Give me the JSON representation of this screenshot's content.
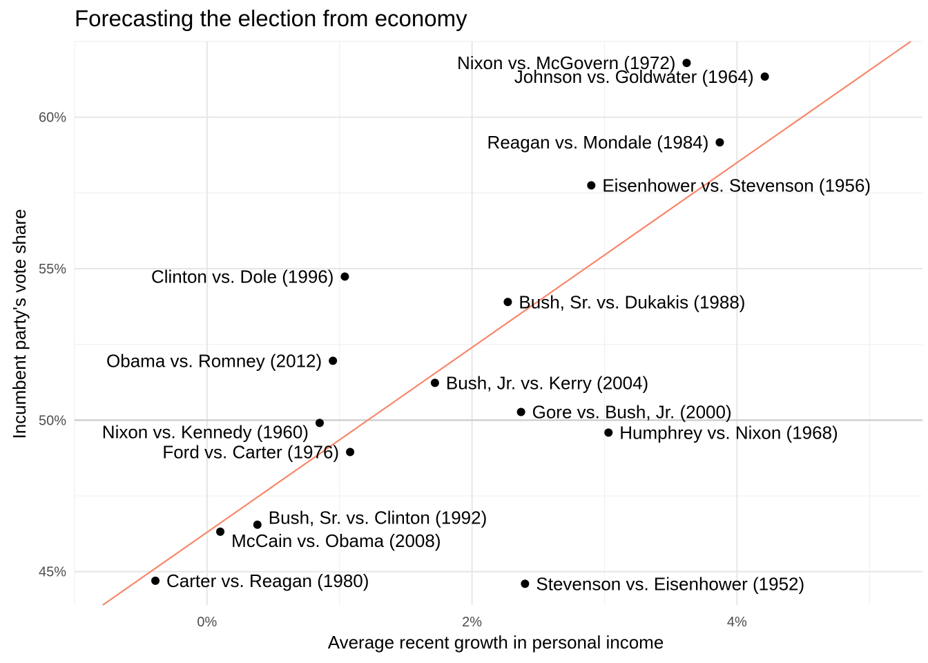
{
  "chart_data": {
    "type": "scatter",
    "title": "Forecasting the election from economy",
    "xlabel": "Average recent growth in personal income",
    "ylabel": "Incumbent party's vote share",
    "xlim": [
      -1.0,
      5.4
    ],
    "ylim": [
      43.9,
      62.5
    ],
    "x_ticks": [
      {
        "value": 0,
        "label": "0%"
      },
      {
        "value": 2,
        "label": "2%"
      },
      {
        "value": 4,
        "label": "4%"
      }
    ],
    "x_minor": [
      -1,
      1,
      3,
      5
    ],
    "y_ticks": [
      {
        "value": 45,
        "label": "45%"
      },
      {
        "value": 50,
        "label": "50%"
      },
      {
        "value": 55,
        "label": "55%"
      },
      {
        "value": 60,
        "label": "60%"
      }
    ],
    "y_minor": [
      47.5,
      52.5,
      57.5,
      62.5
    ],
    "reference_line_y": 50,
    "fit_line": {
      "intercept": 46.3,
      "slope": 3.05,
      "color": "#f8866a"
    },
    "grid": true,
    "legend": "none",
    "point_color": "#000000",
    "points": [
      {
        "label": "Nixon vs. McGovern (1972)",
        "x": 3.62,
        "y": 61.79,
        "side": "left"
      },
      {
        "label": "Johnson vs. Goldwater (1964)",
        "x": 4.21,
        "y": 61.34,
        "side": "left"
      },
      {
        "label": "Reagan vs. Mondale (1984)",
        "x": 3.87,
        "y": 59.17,
        "side": "left"
      },
      {
        "label": "Eisenhower vs. Stevenson (1956)",
        "x": 2.9,
        "y": 57.75,
        "side": "right"
      },
      {
        "label": "Clinton vs. Dole (1996)",
        "x": 1.04,
        "y": 54.74,
        "side": "left"
      },
      {
        "label": "Bush, Sr. vs. Dukakis (1988)",
        "x": 2.27,
        "y": 53.9,
        "side": "right"
      },
      {
        "label": "Obama vs. Romney (2012)",
        "x": 0.95,
        "y": 51.96,
        "side": "left"
      },
      {
        "label": "Bush, Jr. vs. Kerry (2004)",
        "x": 1.72,
        "y": 51.23,
        "side": "right"
      },
      {
        "label": "Gore vs. Bush, Jr. (2000)",
        "x": 2.37,
        "y": 50.27,
        "side": "right"
      },
      {
        "label": "Nixon vs. Kennedy (1960)",
        "x": 0.85,
        "y": 49.91,
        "side": "below-left"
      },
      {
        "label": "Humphrey vs. Nixon (1968)",
        "x": 3.03,
        "y": 49.59,
        "side": "right"
      },
      {
        "label": "Ford vs. Carter (1976)",
        "x": 1.08,
        "y": 48.95,
        "side": "left"
      },
      {
        "label": "Bush, Sr. vs. Clinton (1992)",
        "x": 0.38,
        "y": 46.55,
        "side": "above-right"
      },
      {
        "label": "McCain vs. Obama (2008)",
        "x": 0.1,
        "y": 46.32,
        "side": "below-right"
      },
      {
        "label": "Carter vs. Reagan (1980)",
        "x": -0.39,
        "y": 44.7,
        "side": "right"
      },
      {
        "label": "Stevenson vs. Eisenhower (1952)",
        "x": 2.4,
        "y": 44.6,
        "side": "right"
      }
    ]
  }
}
